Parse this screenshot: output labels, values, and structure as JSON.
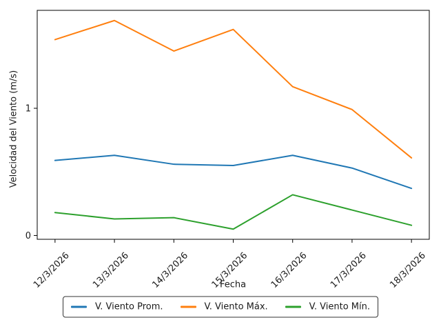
{
  "figure": {
    "background": "#ffffff",
    "axis_color": "#000000",
    "text_color": "#1a1a1a"
  },
  "chart_data": {
    "type": "line",
    "title": "",
    "xlabel": "Fecha",
    "ylabel": "Velocidad del Viento (m/s)",
    "x": [
      "12/3/2026",
      "13/3/2026",
      "14/3/2026",
      "15/3/2026",
      "16/3/2026",
      "17/3/2026",
      "18/3/2026"
    ],
    "series": [
      {
        "name": "V. Viento Prom.",
        "color": "#1f77b4",
        "values": [
          0.59,
          0.63,
          0.56,
          0.55,
          0.63,
          0.53,
          0.37
        ]
      },
      {
        "name": "V. Viento Máx.",
        "color": "#ff7f0e",
        "values": [
          1.54,
          1.69,
          1.45,
          1.62,
          1.17,
          0.99,
          0.61
        ]
      },
      {
        "name": "V. Viento Mín.",
        "color": "#2ca02c",
        "values": [
          0.18,
          0.13,
          0.14,
          0.05,
          0.32,
          0.2,
          0.08
        ]
      }
    ],
    "y_ticks": [
      0,
      1
    ],
    "ylim": [
      -0.03,
      1.77
    ],
    "x_tick_rotation": 45,
    "grid": false,
    "legend_position": "bottom-center"
  }
}
